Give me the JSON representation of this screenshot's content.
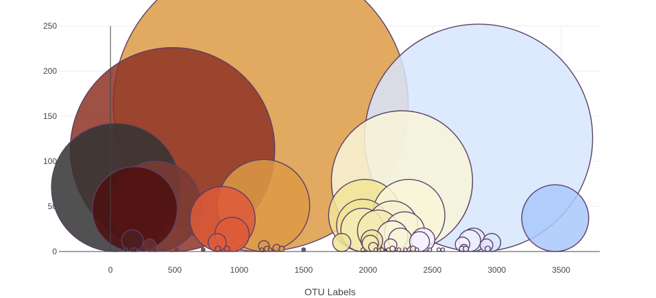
{
  "chart_data": {
    "type": "scatter",
    "variant": "bubble",
    "title": "",
    "xlabel": "OTU Labels",
    "ylabel": "",
    "xlim": [
      -400,
      3800
    ],
    "ylim": [
      0,
      250
    ],
    "x_ticks": [
      0,
      500,
      1000,
      1500,
      2000,
      2500,
      3000,
      3500
    ],
    "y_ticks": [
      0,
      50,
      100,
      150,
      200,
      250
    ],
    "grid": true,
    "legend": "none",
    "series": [
      {
        "points": [
          {
            "x": 41,
            "y": 71,
            "size": 71,
            "color": "#333333"
          },
          {
            "x": 189,
            "y": 47,
            "size": 47,
            "color": "#4d0f0f"
          },
          {
            "x": 352,
            "y": 50,
            "size": 50,
            "color": "#7a3b33"
          },
          {
            "x": 482,
            "y": 113,
            "size": 113,
            "color": "#8e3326"
          },
          {
            "x": 1167,
            "y": 163,
            "size": 163,
            "color": "#dd9a45"
          },
          {
            "x": 1189,
            "y": 51,
            "size": 51,
            "color": "#dd9a45"
          },
          {
            "x": 871,
            "y": 36,
            "size": 36,
            "color": "#de5a3a"
          },
          {
            "x": 944,
            "y": 19,
            "size": 19,
            "color": "#de5a3a"
          },
          {
            "x": 2264,
            "y": 78,
            "size": 78,
            "color": "#f8f4d8"
          },
          {
            "x": 2859,
            "y": 126,
            "size": 126,
            "color": "#d7e5fd"
          },
          {
            "x": 3454,
            "y": 37,
            "size": 37,
            "color": "#a9c8fb"
          },
          {
            "x": 1975,
            "y": 40,
            "size": 40,
            "color": "#f1e597"
          },
          {
            "x": 1960,
            "y": 29,
            "size": 29,
            "color": "#f1e597"
          },
          {
            "x": 1958,
            "y": 24,
            "size": 24,
            "color": "#f3ebb3"
          },
          {
            "x": 2080,
            "y": 23,
            "size": 23,
            "color": "#f3ebb3"
          },
          {
            "x": 2190,
            "y": 28,
            "size": 28,
            "color": "#f6f1cf"
          },
          {
            "x": 2316,
            "y": 40,
            "size": 40,
            "color": "#f8f4d8"
          },
          {
            "x": 2285,
            "y": 22,
            "size": 22,
            "color": "#f8f4d8"
          },
          {
            "x": 2190,
            "y": 17,
            "size": 17,
            "color": "#f8f4d8"
          },
          {
            "x": 2250,
            "y": 13,
            "size": 13,
            "color": "#f8f4d8"
          },
          {
            "x": 2030,
            "y": 12,
            "size": 12,
            "color": "#f1e597"
          },
          {
            "x": 1796,
            "y": 10,
            "size": 10,
            "color": "#f1e597"
          },
          {
            "x": 2400,
            "y": 11,
            "size": 11,
            "color": "#f4f2ff"
          },
          {
            "x": 2428,
            "y": 13,
            "size": 13,
            "color": "#f4f2ff"
          },
          {
            "x": 2734,
            "y": 8,
            "size": 8,
            "color": "#f4f2ff"
          },
          {
            "x": 2790,
            "y": 12,
            "size": 12,
            "color": "#eceeff"
          },
          {
            "x": 2820,
            "y": 13,
            "size": 13,
            "color": "#e3e9ff"
          },
          {
            "x": 2920,
            "y": 7,
            "size": 7,
            "color": "#e3e9ff"
          },
          {
            "x": 2960,
            "y": 10,
            "size": 10,
            "color": "#dae5ff"
          },
          {
            "x": 170,
            "y": 12,
            "size": 12,
            "color": "#4d1f1f"
          },
          {
            "x": 305,
            "y": 7,
            "size": 7,
            "color": "#6a2f2f"
          },
          {
            "x": 829,
            "y": 10,
            "size": 10,
            "color": "#de5a3a"
          },
          {
            "x": 1192,
            "y": 6,
            "size": 6,
            "color": "#dd9a45"
          },
          {
            "x": 1290,
            "y": 4,
            "size": 4,
            "color": "#dd9a45"
          },
          {
            "x": 2018,
            "y": 9,
            "size": 9,
            "color": "#f3ebb3"
          },
          {
            "x": 2040,
            "y": 5,
            "size": 5,
            "color": "#f3ebb3"
          },
          {
            "x": 2175,
            "y": 7,
            "size": 7,
            "color": "#f8f4d8"
          },
          {
            "x": 2745,
            "y": 4,
            "size": 4,
            "color": "#eceeff"
          },
          {
            "x": 2930,
            "y": 3,
            "size": 3,
            "color": "#e3e9ff"
          },
          {
            "x": 120,
            "y": 2,
            "size": 2,
            "color": "#333333"
          },
          {
            "x": 170,
            "y": 2,
            "size": 2,
            "color": "#4d1f1f"
          },
          {
            "x": 190,
            "y": 2,
            "size": 2,
            "color": "#4d1f1f"
          },
          {
            "x": 260,
            "y": 2,
            "size": 2,
            "color": "#4d1f1f"
          },
          {
            "x": 340,
            "y": 2,
            "size": 2,
            "color": "#6a2f2f"
          },
          {
            "x": 408,
            "y": 2,
            "size": 2,
            "color": "#7a3b33"
          },
          {
            "x": 516,
            "y": 2,
            "size": 2,
            "color": "#8e3326"
          },
          {
            "x": 720,
            "y": 2,
            "size": 2,
            "color": "#8e3326"
          },
          {
            "x": 834,
            "y": 3,
            "size": 3,
            "color": "#de5a3a"
          },
          {
            "x": 905,
            "y": 3,
            "size": 3,
            "color": "#de5a3a"
          },
          {
            "x": 1175,
            "y": 2,
            "size": 2,
            "color": "#dd9a45"
          },
          {
            "x": 1215,
            "y": 3,
            "size": 3,
            "color": "#dd9a45"
          },
          {
            "x": 1240,
            "y": 2,
            "size": 2,
            "color": "#dd9a45"
          },
          {
            "x": 1330,
            "y": 3,
            "size": 3,
            "color": "#dd9a45"
          },
          {
            "x": 1500,
            "y": 2,
            "size": 2,
            "color": "#5a3f66"
          },
          {
            "x": 1960,
            "y": 2,
            "size": 2,
            "color": "#f1e597"
          },
          {
            "x": 2060,
            "y": 2,
            "size": 2,
            "color": "#f3ebb3"
          },
          {
            "x": 2110,
            "y": 2,
            "size": 2,
            "color": "#f3ebb3"
          },
          {
            "x": 2160,
            "y": 2,
            "size": 2,
            "color": "#f8f4d8"
          },
          {
            "x": 2190,
            "y": 3,
            "size": 3,
            "color": "#f8f4d8"
          },
          {
            "x": 2240,
            "y": 2,
            "size": 2,
            "color": "#f8f4d8"
          },
          {
            "x": 2290,
            "y": 2,
            "size": 2,
            "color": "#f8f4d8"
          },
          {
            "x": 2350,
            "y": 3,
            "size": 3,
            "color": "#f8f4d8"
          },
          {
            "x": 2380,
            "y": 2,
            "size": 2,
            "color": "#f4f2ff"
          },
          {
            "x": 2480,
            "y": 2,
            "size": 2,
            "color": "#f4f2ff"
          },
          {
            "x": 2550,
            "y": 2,
            "size": 2,
            "color": "#f4f2ff"
          },
          {
            "x": 2580,
            "y": 2,
            "size": 2,
            "color": "#f4f2ff"
          },
          {
            "x": 2730,
            "y": 3,
            "size": 3,
            "color": "#eceeff"
          },
          {
            "x": 2760,
            "y": 3,
            "size": 3,
            "color": "#eceeff"
          }
        ]
      }
    ]
  }
}
